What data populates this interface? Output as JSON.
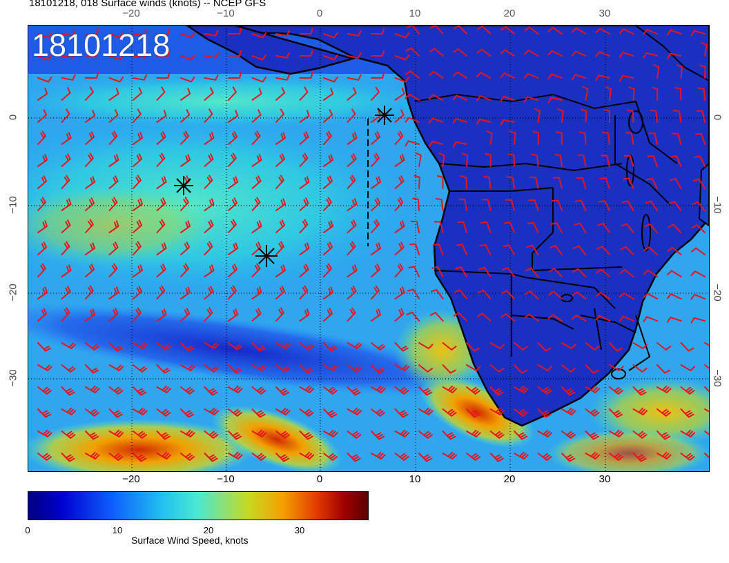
{
  "header": {
    "title": "18101218, 018 Surface winds (knots) -- NCEP GFS",
    "stamp": "18101218"
  },
  "map": {
    "lon_ticks": [
      "−20",
      "−10",
      "0",
      "10",
      "20",
      "30"
    ],
    "lat_ticks": [
      "0",
      "−10",
      "−20",
      "−30"
    ],
    "region": "South Atlantic / Southern Africa",
    "barb_color": "#e8141c",
    "coast_color": "#000000",
    "storm_markers": [
      "asterisk",
      "asterisk",
      "asterisk"
    ]
  },
  "colorbar": {
    "ticks": [
      "0",
      "10",
      "20",
      "30"
    ],
    "label": "Surface Wind Speed, knots",
    "min": 0,
    "max": 37
  }
}
